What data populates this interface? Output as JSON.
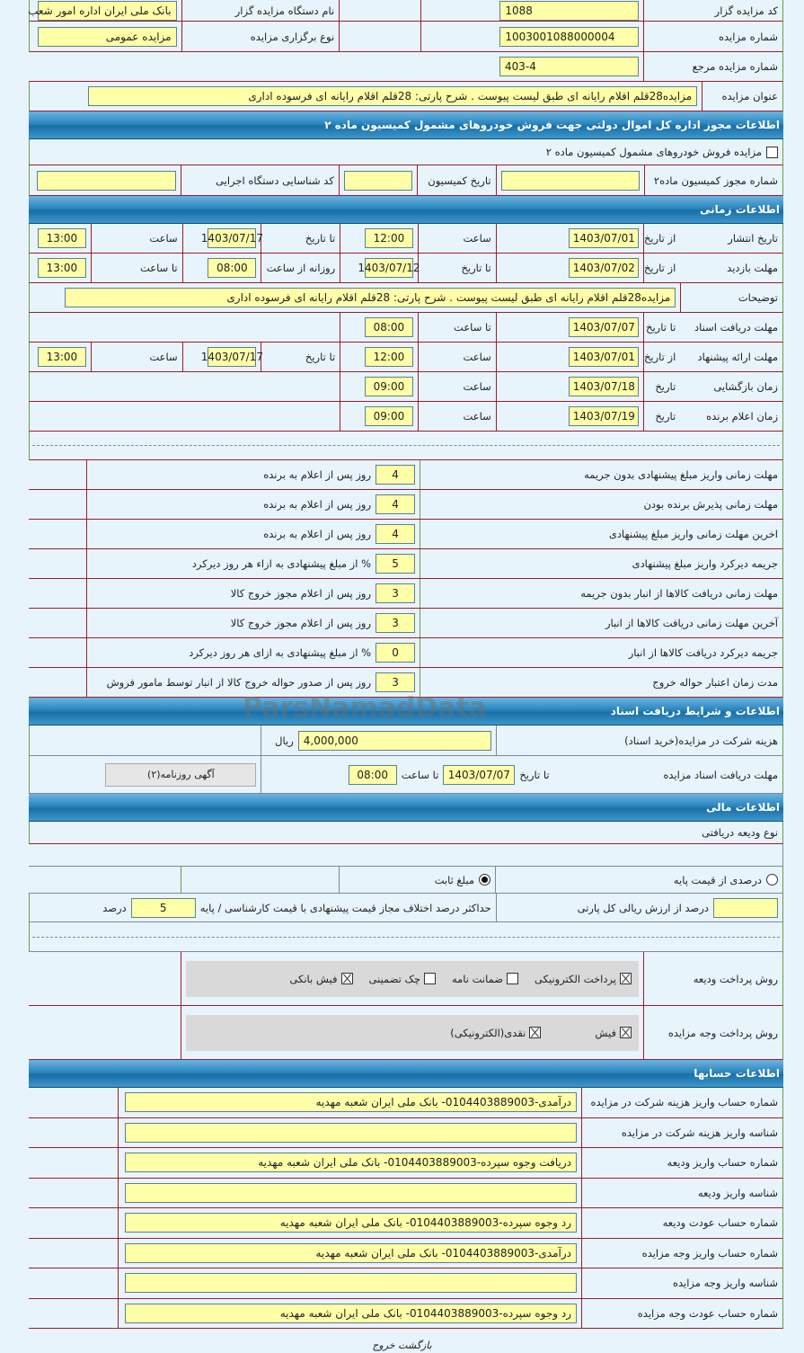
{
  "top": {
    "auctioneer_code_label": "کد مزایده گزار",
    "auctioneer_code": "1088",
    "org_name_label": "نام دستگاه مزایده گزار",
    "org_name": "بانک ملی ایران اداره امور شعب",
    "auction_no_label": "شماره مزایده",
    "auction_no": "1003001088000004",
    "type_label": "نوع برگزاری مزایده",
    "type": "مزایده عمومی",
    "ref_label": "شماره مزایده مرجع",
    "ref": "403-4",
    "title_label": "عنوان مزایده",
    "title": "مزایده28قلم اقلام رایانه ای طبق لیست پیوست . شرح پارتی: 28قلم اقلام رایانه ای فرسوده اداری"
  },
  "commission": {
    "header": "اطلاعات مجوز اداره کل اموال دولتی جهت فروش خودروهای مشمول کمیسیون ماده ۲",
    "checkbox_label": "مزایده فروش خودروهای مشمول کمیسیون ماده ۲",
    "permit_label": "شماره مجوز کمیسیون ماده۲",
    "date_label": "تاریخ کمیسیون",
    "exec_code_label": "کد شناسایی دستگاه اجرایی"
  },
  "timing": {
    "header": "اطلاعات زمانی",
    "rows": [
      [
        "تاریخ انتشار",
        "از تاریخ",
        "1403/07/01",
        "ساعت",
        "12:00",
        "تا تاریخ",
        "1403/07/17",
        "ساعت",
        "13:00"
      ],
      [
        "مهلت بازدید",
        "از تاریخ",
        "1403/07/02",
        "تا تاریخ",
        "1403/07/12",
        "روزانه از ساعت",
        "08:00",
        "تا ساعت",
        "13:00"
      ],
      [
        "توضیحات",
        "مزایده28قلم اقلام رایانه ای طبق لیست پیوست . شرح پارتی: 28قلم اقلام رایانه ای فرسوده اداری"
      ],
      [
        "مهلت دریافت اسناد",
        "تا تاریخ",
        "1403/07/07",
        "تا ساعت",
        "08:00"
      ],
      [
        "مهلت ارائه پیشنهاد",
        "از تاریخ",
        "1403/07/01",
        "ساعت",
        "12:00",
        "تا تاریخ",
        "1403/07/17",
        "ساعت",
        "13:00"
      ],
      [
        "زمان بازگشایی",
        "تاریخ",
        "1403/07/18",
        "ساعت",
        "09:00"
      ],
      [
        "زمان اعلام برنده",
        "تاریخ",
        "1403/07/19",
        "ساعت",
        "09:00"
      ]
    ]
  },
  "penalties": [
    {
      "label": "مهلت زمانی واریز مبلغ پیشنهادی بدون جریمه",
      "value": "4",
      "unit": "روز پس از اعلام به برنده"
    },
    {
      "label": "مهلت زمانی پذیرش برنده بودن",
      "value": "4",
      "unit": "روز پس از اعلام به برنده"
    },
    {
      "label": "اخرین مهلت زمانی واریز مبلغ پیشنهادی",
      "value": "4",
      "unit": "روز پس از اعلام به برنده"
    },
    {
      "label": "جریمه دیرکرد واریز مبلغ پیشنهادی",
      "value": "5",
      "unit": "% از مبلغ پیشنهادی به ازاء هر روز دیرکرد"
    },
    {
      "label": "مهلت زمانی دریافت کالاها از انبار بدون جریمه",
      "value": "3",
      "unit": "روز پس از اعلام مجوز خروج کالا"
    },
    {
      "label": "آخرین مهلت زمانی دریافت کالاها از انبار",
      "value": "3",
      "unit": "روز پس از اعلام مجوز خروج کالا"
    },
    {
      "label": "جریمه دیرکرد دریافت کالاها از انبار",
      "value": "0",
      "unit": "% از مبلغ پیشنهادی به ازای هر روز دیرکرد"
    },
    {
      "label": "مدت زمان اعتبار حواله خروج",
      "value": "3",
      "unit": "روز پس از صدور حواله خروج کالا از انبار توسط مامور فروش"
    }
  ],
  "documents": {
    "header": "اطلاعات و شرایط دریافت اسناد",
    "fee_label": "هزینه شرکت در مزایده(خرید اسناد)",
    "fee": "4,000,000",
    "fee_unit": "ریال",
    "deadline_label": "مهلت دریافت اسناد مزایده",
    "to_date_label": "تا تاریخ",
    "to_date": "1403/07/07",
    "to_time_label": "تا ساعت",
    "to_time": "08:00",
    "ad_button": "آگهی روزنامه(۲)"
  },
  "financial": {
    "header": "اطلاعات مالی",
    "deposit_type_label": "نوع ودیعه دریافتی",
    "radio_percent": "درصدی از قیمت پایه",
    "radio_fixed": "مبلغ ثابت",
    "selected": "fixed",
    "percent_of_value_label": "درصد از ارزش ریالی کل پارتی",
    "max_diff_label": "حداکثر درصد اختلاف مجاز قیمت پیشنهادی با قیمت کارشناسی / پایه",
    "max_diff": "5",
    "max_diff_unit": "درصد",
    "deposit_method_label": "روش پرداخت ودیعه",
    "deposit_methods": [
      {
        "label": "پرداخت الکترونیکی",
        "checked": true
      },
      {
        "label": "ضمانت نامه",
        "checked": false
      },
      {
        "label": "چک تضمینی",
        "checked": false
      },
      {
        "label": "فیش بانکی",
        "checked": true
      }
    ],
    "payment_method_label": "روش پرداخت وجه مزایده",
    "payment_methods": [
      {
        "label": "فیش",
        "checked": true
      },
      {
        "label": "نقدی(الکترونیکی)",
        "checked": true
      }
    ]
  },
  "accounts": {
    "header": "اطلاعات حسابها",
    "rows": [
      {
        "label": "شماره حساب واریز هزینه شرکت در مزایده",
        "value": "درآمدی-0104403889003- بانک ملی ایران شعبه مهدیه"
      },
      {
        "label": "شناسه واریز هزینه شرکت در مزایده",
        "value": ""
      },
      {
        "label": "شماره حساب واریز ودیعه",
        "value": "دریافت وجوه سپرده-0104403889003- بانک ملی ایران شعبه مهدیه"
      },
      {
        "label": "شناسه واریز ودیعه",
        "value": ""
      },
      {
        "label": "شماره حساب عودت ودیعه",
        "value": "رد وجوه سپرده-0104403889003- بانک ملی ایران شعبه مهدیه"
      },
      {
        "label": "شماره حساب واریز وجه مزایده",
        "value": "درآمدی-0104403889003- بانک ملی ایران شعبه مهدیه"
      },
      {
        "label": "شناسه واریز وجه مزایده",
        "value": ""
      },
      {
        "label": "شماره حساب عودت وجه مزایده",
        "value": "رد وجوه سپرده-0104403889003- بانک ملی ایران شعبه مهدیه"
      }
    ]
  },
  "footer": {
    "back": "بازگشت",
    "exit": "خروج"
  },
  "watermark": "ParsNamadData",
  "colors": {
    "header": "#1a6fa6",
    "input": "#ffffa8",
    "row_border": "#9b1c2e",
    "side_border": "#6a9a4a",
    "background": "#e8f4fc"
  }
}
